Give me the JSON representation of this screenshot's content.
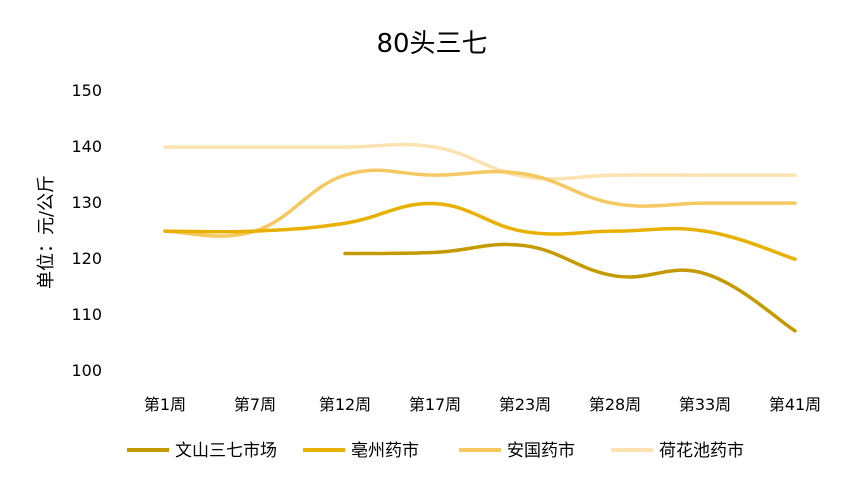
{
  "chart_data": {
    "type": "line",
    "title": "80头三七",
    "ylabel": "单位：元/公斤",
    "xlabel": "",
    "categories": [
      "第1周",
      "第7周",
      "第12周",
      "第17周",
      "第23周",
      "第28周",
      "第33周",
      "第41周"
    ],
    "ylim": [
      100,
      150
    ],
    "yticks": [
      "100",
      "110",
      "120",
      "130",
      "140",
      "150"
    ],
    "grid": false,
    "legend_position": "bottom",
    "series": [
      {
        "name": "文山三七市场",
        "color": "#C49A00",
        "values": [
          null,
          null,
          120.8,
          121.0,
          122.2,
          116.8,
          117.2,
          107.0
        ]
      },
      {
        "name": "亳州药市",
        "color": "#E8B000",
        "values": [
          124.8,
          124.8,
          126.2,
          129.7,
          124.7,
          124.8,
          124.8,
          119.8
        ]
      },
      {
        "name": "安国药市",
        "color": "#F5C862",
        "values": [
          124.8,
          124.8,
          134.8,
          134.8,
          135.0,
          129.7,
          129.8,
          129.8
        ]
      },
      {
        "name": "荷花池药市",
        "color": "#FBE2B0",
        "values": [
          139.8,
          139.8,
          139.8,
          139.8,
          134.5,
          134.8,
          134.8,
          134.8
        ]
      }
    ]
  }
}
